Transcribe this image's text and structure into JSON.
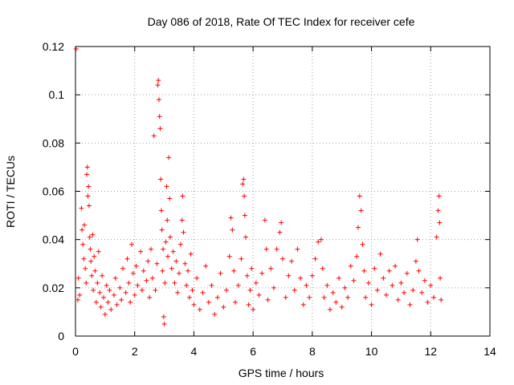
{
  "chart_data": {
    "type": "scatter",
    "title": "Day 086 of 2018, Rate Of TEC Index for receiver cefe",
    "xlabel": "GPS time / hours",
    "ylabel": "ROTI / TECUs",
    "xlim": [
      0,
      14
    ],
    "ylim": [
      0,
      0.12
    ],
    "x_ticks": [
      0,
      2,
      4,
      6,
      8,
      10,
      12,
      14
    ],
    "x_tick_labels": [
      "0",
      "2",
      "4",
      "6",
      "8",
      "10",
      "12",
      "14"
    ],
    "y_ticks": [
      0,
      0.02,
      0.04,
      0.06,
      0.08,
      0.1,
      0.12
    ],
    "y_tick_labels": [
      "0",
      "0.02",
      "0.04",
      "0.06",
      "0.08",
      "0.1",
      "0.12"
    ],
    "grid": true,
    "marker": "+",
    "color": "#ff0000",
    "series": [
      {
        "name": "ROTI",
        "points": [
          [
            0.02,
            0.119
          ],
          [
            0.08,
            0.015
          ],
          [
            0.1,
            0.024
          ],
          [
            0.14,
            0.017
          ],
          [
            0.2,
            0.053
          ],
          [
            0.22,
            0.044
          ],
          [
            0.25,
            0.038
          ],
          [
            0.28,
            0.032
          ],
          [
            0.3,
            0.046
          ],
          [
            0.33,
            0.028
          ],
          [
            0.36,
            0.022
          ],
          [
            0.38,
            0.067
          ],
          [
            0.4,
            0.07
          ],
          [
            0.42,
            0.058
          ],
          [
            0.44,
            0.062
          ],
          [
            0.46,
            0.054
          ],
          [
            0.48,
            0.041
          ],
          [
            0.5,
            0.036
          ],
          [
            0.52,
            0.031
          ],
          [
            0.55,
            0.025
          ],
          [
            0.58,
            0.042
          ],
          [
            0.6,
            0.019
          ],
          [
            0.63,
            0.033
          ],
          [
            0.66,
            0.027
          ],
          [
            0.7,
            0.014
          ],
          [
            0.74,
            0.022
          ],
          [
            0.78,
            0.035
          ],
          [
            0.82,
            0.018
          ],
          [
            0.86,
            0.012
          ],
          [
            0.9,
            0.025
          ],
          [
            0.95,
            0.016
          ],
          [
            1.0,
            0.009
          ],
          [
            1.05,
            0.021
          ],
          [
            1.1,
            0.014
          ],
          [
            1.15,
            0.019
          ],
          [
            1.2,
            0.011
          ],
          [
            1.3,
            0.017
          ],
          [
            1.35,
            0.024
          ],
          [
            1.4,
            0.013
          ],
          [
            1.5,
            0.02
          ],
          [
            1.55,
            0.015
          ],
          [
            1.6,
            0.028
          ],
          [
            1.7,
            0.018
          ],
          [
            1.75,
            0.032
          ],
          [
            1.8,
            0.022
          ],
          [
            1.85,
            0.014
          ],
          [
            1.9,
            0.038
          ],
          [
            1.95,
            0.026
          ],
          [
            2.0,
            0.017
          ],
          [
            2.05,
            0.029
          ],
          [
            2.1,
            0.021
          ],
          [
            2.2,
            0.035
          ],
          [
            2.25,
            0.019
          ],
          [
            2.3,
            0.027
          ],
          [
            2.4,
            0.023
          ],
          [
            2.45,
            0.031
          ],
          [
            2.5,
            0.016
          ],
          [
            2.55,
            0.036
          ],
          [
            2.6,
            0.024
          ],
          [
            2.65,
            0.083
          ],
          [
            2.7,
            0.019
          ],
          [
            2.75,
            0.03
          ],
          [
            2.78,
            0.104
          ],
          [
            2.8,
            0.106
          ],
          [
            2.82,
            0.098
          ],
          [
            2.84,
            0.091
          ],
          [
            2.86,
            0.086
          ],
          [
            2.88,
            0.065
          ],
          [
            2.9,
            0.052
          ],
          [
            2.92,
            0.044
          ],
          [
            2.94,
            0.027
          ],
          [
            2.96,
            0.036
          ],
          [
            2.98,
            0.008
          ],
          [
            3.0,
            0.005
          ],
          [
            3.02,
            0.022
          ],
          [
            3.05,
            0.039
          ],
          [
            3.08,
            0.062
          ],
          [
            3.1,
            0.048
          ],
          [
            3.12,
            0.033
          ],
          [
            3.15,
            0.074
          ],
          [
            3.18,
            0.057
          ],
          [
            3.2,
            0.041
          ],
          [
            3.25,
            0.028
          ],
          [
            3.3,
            0.035
          ],
          [
            3.35,
            0.022
          ],
          [
            3.4,
            0.031
          ],
          [
            3.45,
            0.018
          ],
          [
            3.5,
            0.026
          ],
          [
            3.55,
            0.038
          ],
          [
            3.6,
            0.048
          ],
          [
            3.62,
            0.058
          ],
          [
            3.65,
            0.043
          ],
          [
            3.7,
            0.03
          ],
          [
            3.75,
            0.021
          ],
          [
            3.8,
            0.027
          ],
          [
            3.85,
            0.016
          ],
          [
            3.9,
            0.034
          ],
          [
            3.95,
            0.019
          ],
          [
            4.0,
            0.013
          ],
          [
            4.1,
            0.024
          ],
          [
            4.2,
            0.011
          ],
          [
            4.3,
            0.018
          ],
          [
            4.4,
            0.029
          ],
          [
            4.5,
            0.014
          ],
          [
            4.6,
            0.021
          ],
          [
            4.7,
            0.009
          ],
          [
            4.8,
            0.016
          ],
          [
            4.9,
            0.026
          ],
          [
            5.0,
            0.012
          ],
          [
            5.1,
            0.019
          ],
          [
            5.2,
            0.033
          ],
          [
            5.25,
            0.049
          ],
          [
            5.3,
            0.044
          ],
          [
            5.35,
            0.027
          ],
          [
            5.4,
            0.014
          ],
          [
            5.5,
            0.021
          ],
          [
            5.6,
            0.032
          ],
          [
            5.65,
            0.063
          ],
          [
            5.68,
            0.065
          ],
          [
            5.7,
            0.058
          ],
          [
            5.72,
            0.05
          ],
          [
            5.75,
            0.041
          ],
          [
            5.8,
            0.025
          ],
          [
            5.85,
            0.013
          ],
          [
            5.9,
            0.019
          ],
          [
            5.95,
            0.028
          ],
          [
            6.0,
            0.011
          ],
          [
            6.1,
            0.022
          ],
          [
            6.2,
            0.017
          ],
          [
            6.3,
            0.026
          ],
          [
            6.4,
            0.048
          ],
          [
            6.45,
            0.036
          ],
          [
            6.5,
            0.015
          ],
          [
            6.6,
            0.028
          ],
          [
            6.7,
            0.02
          ],
          [
            6.8,
            0.036
          ],
          [
            6.9,
            0.043
          ],
          [
            6.95,
            0.047
          ],
          [
            7.0,
            0.032
          ],
          [
            7.1,
            0.016
          ],
          [
            7.2,
            0.025
          ],
          [
            7.3,
            0.031
          ],
          [
            7.4,
            0.019
          ],
          [
            7.5,
            0.036
          ],
          [
            7.6,
            0.024
          ],
          [
            7.7,
            0.013
          ],
          [
            7.8,
            0.021
          ],
          [
            7.9,
            0.016
          ],
          [
            8.0,
            0.025
          ],
          [
            8.1,
            0.032
          ],
          [
            8.2,
            0.039
          ],
          [
            8.3,
            0.04
          ],
          [
            8.35,
            0.028
          ],
          [
            8.4,
            0.016
          ],
          [
            8.5,
            0.021
          ],
          [
            8.6,
            0.011
          ],
          [
            8.7,
            0.018
          ],
          [
            8.8,
            0.014
          ],
          [
            8.9,
            0.024
          ],
          [
            9.0,
            0.012
          ],
          [
            9.1,
            0.02
          ],
          [
            9.2,
            0.016
          ],
          [
            9.3,
            0.029
          ],
          [
            9.4,
            0.023
          ],
          [
            9.5,
            0.033
          ],
          [
            9.55,
            0.045
          ],
          [
            9.6,
            0.058
          ],
          [
            9.65,
            0.052
          ],
          [
            9.7,
            0.038
          ],
          [
            9.75,
            0.027
          ],
          [
            9.8,
            0.016
          ],
          [
            9.9,
            0.022
          ],
          [
            10.0,
            0.013
          ],
          [
            10.1,
            0.028
          ],
          [
            10.2,
            0.019
          ],
          [
            10.3,
            0.034
          ],
          [
            10.4,
            0.024
          ],
          [
            10.5,
            0.017
          ],
          [
            10.6,
            0.027
          ],
          [
            10.7,
            0.021
          ],
          [
            10.8,
            0.029
          ],
          [
            10.9,
            0.015
          ],
          [
            11.0,
            0.022
          ],
          [
            11.1,
            0.018
          ],
          [
            11.2,
            0.026
          ],
          [
            11.3,
            0.013
          ],
          [
            11.4,
            0.019
          ],
          [
            11.5,
            0.031
          ],
          [
            11.55,
            0.04
          ],
          [
            11.6,
            0.027
          ],
          [
            11.7,
            0.018
          ],
          [
            11.8,
            0.023
          ],
          [
            11.9,
            0.014
          ],
          [
            12.0,
            0.021
          ],
          [
            12.1,
            0.016
          ],
          [
            12.2,
            0.041
          ],
          [
            12.25,
            0.052
          ],
          [
            12.28,
            0.058
          ],
          [
            12.3,
            0.047
          ],
          [
            12.32,
            0.024
          ],
          [
            12.35,
            0.015
          ]
        ]
      }
    ]
  }
}
